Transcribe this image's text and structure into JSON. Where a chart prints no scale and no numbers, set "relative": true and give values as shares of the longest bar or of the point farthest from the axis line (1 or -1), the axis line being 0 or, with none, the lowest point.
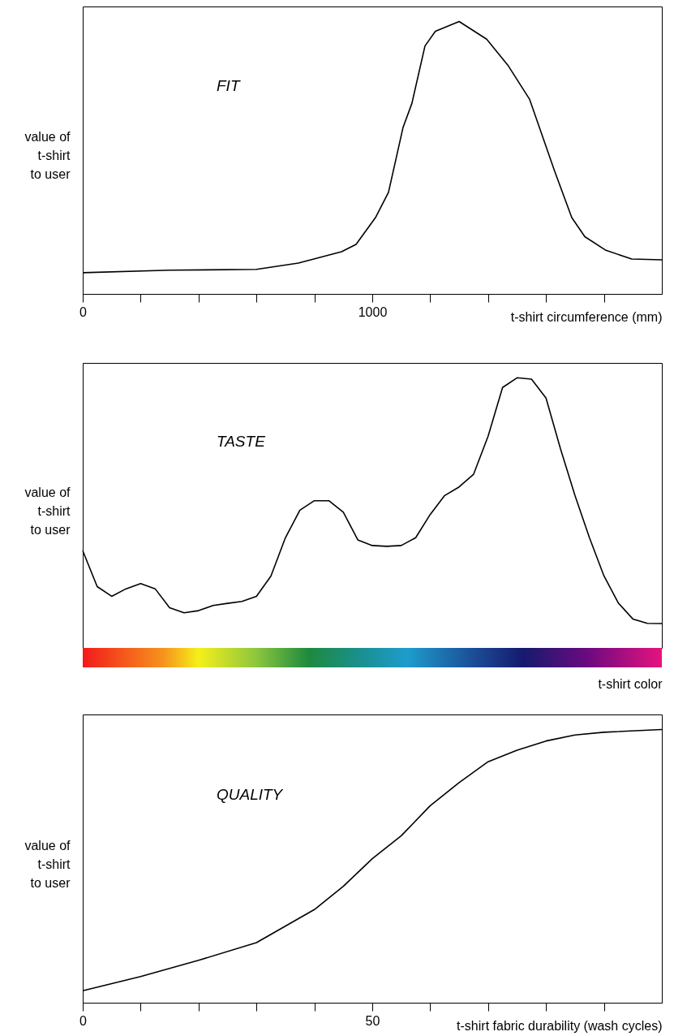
{
  "chart_data": [
    {
      "type": "line",
      "title": "FIT",
      "xlabel": "t-shirt circumference (mm)",
      "ylabel": "value of\nt-shirt\nto user",
      "relative": true,
      "color": "#000000",
      "x": [
        0,
        302,
        600,
        745,
        894,
        944,
        1011,
        1056,
        1106,
        1137,
        1182,
        1218,
        1300,
        1395,
        1468,
        1543,
        1630,
        1689,
        1734,
        1807,
        1896,
        2000
      ],
      "values": [
        0.078,
        0.087,
        0.09,
        0.113,
        0.155,
        0.182,
        0.28,
        0.373,
        0.61,
        0.7,
        0.91,
        0.964,
        1.0,
        0.935,
        0.84,
        0.715,
        0.45,
        0.28,
        0.21,
        0.16,
        0.128,
        0.125
      ],
      "xlim": [
        0,
        2000
      ],
      "xticks": [
        0,
        {
          "value": 200,
          "label": null
        },
        {
          "value": 400,
          "label": null
        },
        {
          "value": 600,
          "label": null
        },
        {
          "value": 800,
          "label": null
        },
        1000,
        {
          "value": 1200,
          "label": null
        },
        {
          "value": 1400,
          "label": null
        },
        {
          "value": 1600,
          "label": null
        },
        {
          "value": 1800,
          "label": null
        }
      ]
    },
    {
      "type": "line",
      "title": "TASTE",
      "xlabel": "t-shirt color",
      "ylabel": "value of\nt-shirt\nto user",
      "relative": true,
      "color": "#000000",
      "categories": [
        null,
        null,
        null,
        null,
        null,
        null,
        null,
        null,
        null,
        null,
        null,
        null,
        null,
        null,
        null,
        null,
        null,
        null,
        null,
        null,
        null,
        null,
        null,
        null,
        null,
        null,
        null,
        null,
        null,
        null,
        null,
        null,
        null,
        null,
        null,
        null,
        null,
        null,
        null,
        null,
        null
      ],
      "values": [
        0.36,
        0.227,
        0.191,
        0.219,
        0.238,
        0.219,
        0.149,
        0.13,
        0.138,
        0.157,
        0.165,
        0.172,
        0.191,
        0.266,
        0.408,
        0.51,
        0.545,
        0.545,
        0.502,
        0.4,
        0.379,
        0.376,
        0.379,
        0.408,
        0.494,
        0.564,
        0.596,
        0.643,
        0.784,
        0.964,
        1.0,
        0.995,
        0.925,
        0.737,
        0.564,
        0.408,
        0.267,
        0.166,
        0.107,
        0.091,
        0.09
      ]
    },
    {
      "type": "line",
      "title": "QUALITY",
      "xlabel": "t-shirt fabric durability (wash cycles)",
      "ylabel": "value of\nt-shirt\nto user",
      "relative": true,
      "color": "#000000",
      "x": [
        0,
        10,
        20,
        30,
        40,
        45,
        50,
        55,
        60,
        65,
        70,
        75,
        80,
        85,
        90,
        100
      ],
      "values": [
        0.044,
        0.096,
        0.155,
        0.22,
        0.341,
        0.426,
        0.527,
        0.611,
        0.721,
        0.806,
        0.882,
        0.924,
        0.958,
        0.98,
        0.99,
        1.0
      ],
      "xlim": [
        0,
        100
      ],
      "xticks": [
        0,
        {
          "value": 10,
          "label": null
        },
        {
          "value": 20,
          "label": null
        },
        {
          "value": 30,
          "label": null
        },
        {
          "value": 40,
          "label": null
        },
        50,
        {
          "value": 60,
          "label": null
        },
        {
          "value": 70,
          "label": null
        },
        {
          "value": 80,
          "label": null
        },
        {
          "value": 90,
          "label": null
        }
      ]
    }
  ]
}
